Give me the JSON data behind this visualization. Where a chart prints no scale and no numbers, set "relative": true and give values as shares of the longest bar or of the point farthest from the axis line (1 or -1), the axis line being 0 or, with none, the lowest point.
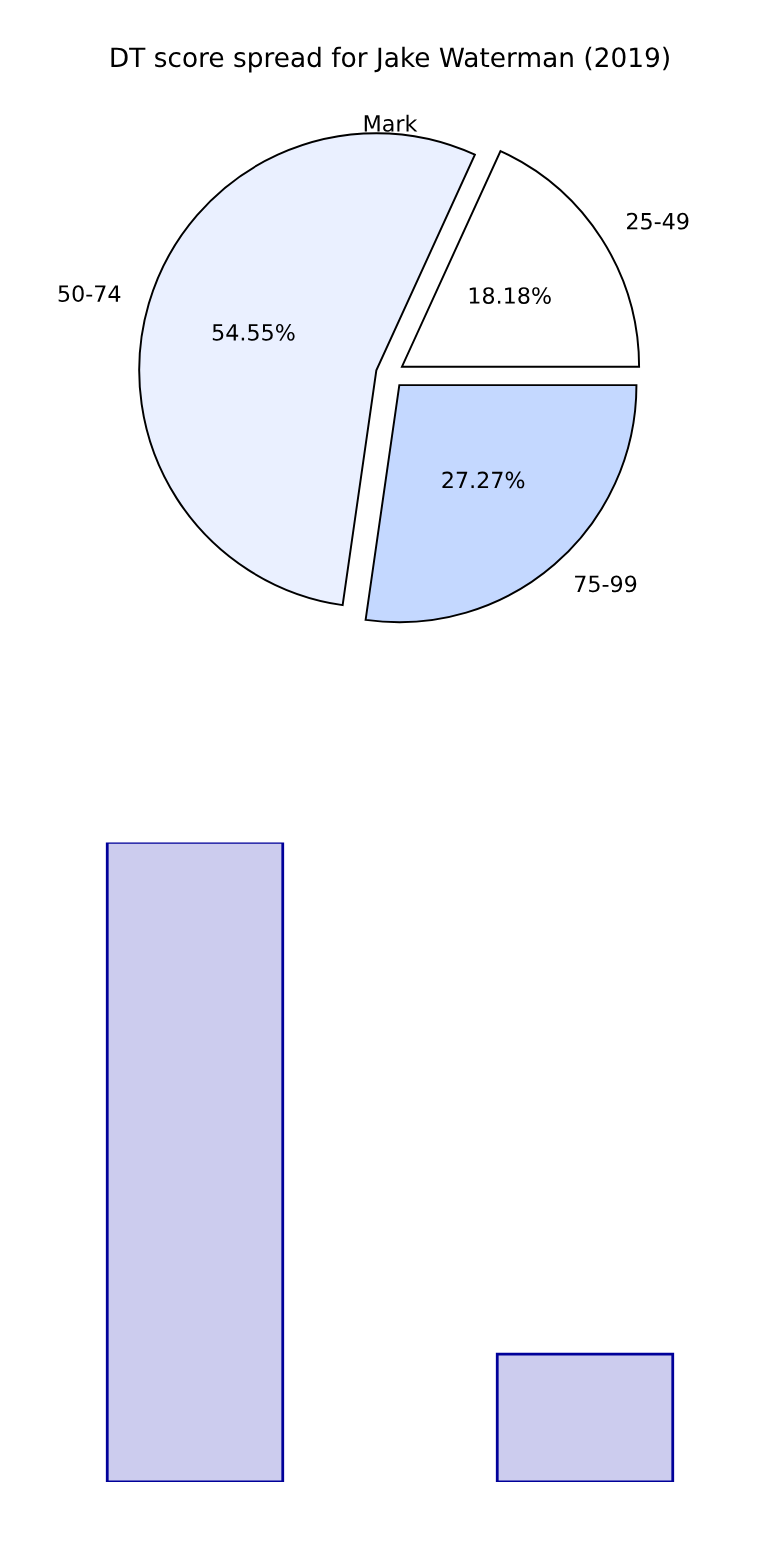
{
  "chart_data": [
    {
      "type": "pie",
      "title": "DT score spread for Jake Waterman (2019)",
      "categories": [
        "25-49",
        "50-74",
        "75-99"
      ],
      "values": [
        18.18,
        54.55,
        27.27
      ],
      "colors": [
        "#ffffff",
        "#eaf0ff",
        "#c4d8ff"
      ],
      "value_labels": [
        "18.18%",
        "54.55%",
        "27.27%"
      ],
      "annotations": [
        "Mark"
      ]
    },
    {
      "type": "bar",
      "relative": true,
      "categories": [
        null,
        null
      ],
      "values": [
        1,
        0.2
      ],
      "color": "#ccccee",
      "grid": false
    }
  ]
}
